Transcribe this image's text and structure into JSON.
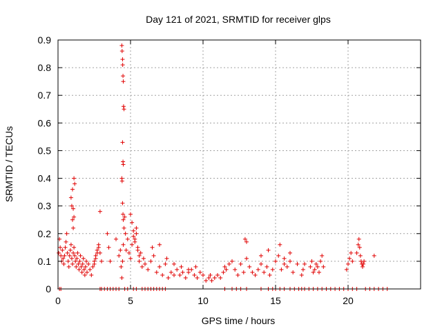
{
  "chart_data": {
    "type": "scatter",
    "title": "Day 121 of 2021, SRMTID for receiver glps",
    "xlabel": "GPS time / hours",
    "ylabel": "SRMTID / TECUs",
    "xlim": [
      0,
      25
    ],
    "ylim": [
      0,
      0.9
    ],
    "grid": true,
    "marker": "+",
    "color": "#e00000",
    "xticks": [
      0,
      5,
      10,
      15,
      20
    ],
    "xtick_labels": [
      "0",
      "5",
      "10",
      "15",
      "20"
    ],
    "yticks": [
      0,
      0.1,
      0.2,
      0.3,
      0.4,
      0.5,
      0.6,
      0.7,
      0.8,
      0.9
    ],
    "ytick_labels": [
      "0",
      "0.1",
      "0.2",
      "0.3",
      "0.4",
      "0.5",
      "0.6",
      "0.7",
      "0.8",
      "0.9"
    ],
    "series": [
      {
        "name": "SRMTID",
        "x": [
          0.05,
          0.1,
          0.15,
          0.2,
          0.25,
          0.3,
          0.35,
          0.4,
          0.45,
          0.5,
          0.55,
          0.6,
          0.65,
          0.7,
          0.75,
          0.8,
          0.85,
          0.9,
          0.95,
          1.0,
          1.05,
          1.1,
          1.15,
          1.2,
          1.25,
          1.3,
          1.35,
          1.4,
          1.45,
          1.5,
          1.55,
          1.6,
          1.65,
          1.7,
          1.75,
          1.8,
          1.85,
          1.9,
          1.95,
          2.0,
          2.1,
          2.2,
          2.3,
          2.4,
          2.5,
          2.6,
          2.7,
          2.8,
          2.9,
          3.0,
          0.9,
          0.95,
          1.0,
          1.05,
          1.1,
          1.15,
          1.0,
          1.05,
          1.1,
          2.5,
          2.6,
          2.7,
          2.8,
          2.9,
          3.4,
          3.5,
          3.6,
          4.0,
          4.2,
          4.3,
          4.35,
          4.4,
          4.45,
          4.5,
          4.55,
          4.6,
          4.65,
          4.7,
          4.8,
          4.9,
          5.0,
          5.1,
          5.2,
          5.3,
          5.4,
          5.5,
          5.6,
          5.7,
          5.8,
          5.9,
          6.0,
          4.4,
          4.42,
          4.45,
          4.46,
          4.48,
          4.5,
          4.52,
          4.55,
          4.45,
          4.48,
          4.5,
          4.4,
          4.42,
          4.45,
          4.48,
          4.5,
          5.0,
          5.1,
          5.2,
          5.3,
          5.4,
          5.5,
          5.6,
          6.2,
          6.4,
          6.6,
          6.8,
          7.0,
          7.2,
          7.4,
          7.6,
          7.8,
          8.0,
          8.2,
          8.4,
          8.6,
          8.8,
          9.0,
          9.2,
          9.4,
          9.6,
          9.8,
          10.0,
          10.2,
          10.4,
          10.6,
          10.8,
          11.0,
          11.2,
          11.4,
          11.6,
          11.8,
          12.0,
          12.2,
          12.4,
          12.6,
          12.8,
          13.0,
          13.2,
          13.4,
          13.6,
          13.8,
          14.0,
          14.2,
          14.4,
          14.6,
          14.8,
          15.0,
          15.2,
          15.4,
          15.6,
          15.8,
          16.0,
          16.2,
          6.5,
          7.0,
          7.5,
          8.0,
          8.5,
          9.0,
          9.5,
          10.5,
          11.5,
          12.9,
          13.0,
          14.0,
          14.5,
          15.3,
          15.6,
          16.0,
          16.5,
          16.8,
          16.9,
          17.0,
          17.4,
          17.5,
          17.6,
          17.7,
          17.8,
          17.9,
          18.0,
          18.1,
          18.2,
          18.3,
          19.9,
          20.0,
          20.1,
          20.2,
          20.3,
          20.6,
          20.7,
          20.75,
          20.8,
          20.85,
          20.9,
          20.95,
          21.0,
          21.05,
          21.1,
          21.8,
          0.1,
          0.2,
          2.9,
          3.0,
          3.2,
          3.4,
          3.6,
          3.8,
          4.0,
          4.2,
          4.6,
          4.8,
          5.2,
          5.4,
          5.8,
          6.0,
          6.2,
          6.4,
          6.6,
          6.8,
          7.0,
          7.2,
          7.4,
          11.5,
          12.0,
          12.3,
          12.6,
          13.0,
          14.0,
          14.5,
          14.8,
          15.0,
          15.3,
          15.6,
          16.0,
          16.3,
          16.6,
          16.8,
          17.0,
          17.3,
          17.6,
          17.9,
          18.2,
          18.5,
          18.8,
          19.1,
          19.4,
          19.7,
          20.0,
          20.3,
          20.6,
          21.2,
          21.5,
          21.8,
          22.1,
          22.4,
          22.7
        ],
        "y": [
          0.13,
          0.18,
          0.15,
          0.12,
          0.1,
          0.14,
          0.11,
          0.09,
          0.12,
          0.15,
          0.17,
          0.2,
          0.13,
          0.1,
          0.08,
          0.12,
          0.14,
          0.16,
          0.11,
          0.09,
          0.13,
          0.15,
          0.12,
          0.1,
          0.08,
          0.11,
          0.13,
          0.09,
          0.07,
          0.1,
          0.12,
          0.08,
          0.06,
          0.09,
          0.11,
          0.07,
          0.05,
          0.08,
          0.1,
          0.06,
          0.09,
          0.07,
          0.05,
          0.08,
          0.1,
          0.12,
          0.14,
          0.16,
          0.13,
          0.1,
          0.33,
          0.3,
          0.36,
          0.29,
          0.4,
          0.38,
          0.25,
          0.22,
          0.26,
          0.09,
          0.11,
          0.13,
          0.15,
          0.28,
          0.2,
          0.15,
          0.1,
          0.18,
          0.12,
          0.14,
          0.08,
          0.04,
          0.1,
          0.16,
          0.22,
          0.26,
          0.2,
          0.14,
          0.18,
          0.13,
          0.11,
          0.16,
          0.19,
          0.17,
          0.22,
          0.14,
          0.1,
          0.13,
          0.08,
          0.11,
          0.09,
          0.88,
          0.86,
          0.83,
          0.81,
          0.77,
          0.75,
          0.66,
          0.65,
          0.53,
          0.46,
          0.45,
          0.4,
          0.39,
          0.31,
          0.27,
          0.25,
          0.27,
          0.24,
          0.21,
          0.18,
          0.2,
          0.15,
          0.12,
          0.07,
          0.1,
          0.12,
          0.06,
          0.08,
          0.05,
          0.09,
          0.04,
          0.06,
          0.05,
          0.07,
          0.05,
          0.06,
          0.04,
          0.06,
          0.07,
          0.05,
          0.04,
          0.06,
          0.05,
          0.03,
          0.04,
          0.03,
          0.04,
          0.05,
          0.04,
          0.06,
          0.07,
          0.09,
          0.1,
          0.07,
          0.05,
          0.09,
          0.06,
          0.11,
          0.08,
          0.06,
          0.05,
          0.07,
          0.09,
          0.06,
          0.08,
          0.05,
          0.07,
          0.1,
          0.12,
          0.07,
          0.09,
          0.08,
          0.1,
          0.06,
          0.15,
          0.16,
          0.11,
          0.09,
          0.08,
          0.07,
          0.08,
          0.05,
          0.08,
          0.18,
          0.17,
          0.12,
          0.14,
          0.16,
          0.11,
          0.13,
          0.09,
          0.05,
          0.07,
          0.09,
          0.08,
          0.1,
          0.06,
          0.07,
          0.09,
          0.08,
          0.06,
          0.1,
          0.12,
          0.08,
          0.07,
          0.09,
          0.11,
          0.13,
          0.1,
          0.13,
          0.16,
          0.18,
          0.15,
          0.12,
          0.1,
          0.09,
          0.08,
          0.09,
          0.1,
          0.12,
          0.0,
          0.0,
          0.0,
          0.0,
          0.0,
          0.0,
          0.0,
          0.0,
          0.0,
          0.0,
          0.0,
          0.0,
          0.0,
          0.0,
          0.0,
          0.0,
          0.0,
          0.0,
          0.0,
          0.0,
          0.0,
          0.0,
          0.0,
          0.0,
          0.0,
          0.0,
          0.0,
          0.0,
          0.0,
          0.0,
          0.0,
          0.0,
          0.0,
          0.0,
          0.0,
          0.0,
          0.0,
          0.0,
          0.0,
          0.0,
          0.0,
          0.0,
          0.0,
          0.0,
          0.0,
          0.0,
          0.0,
          0.0,
          0.0,
          0.0,
          0.0,
          0.0,
          0.0,
          0.0,
          0.0,
          0.0,
          0.0
        ]
      }
    ]
  }
}
